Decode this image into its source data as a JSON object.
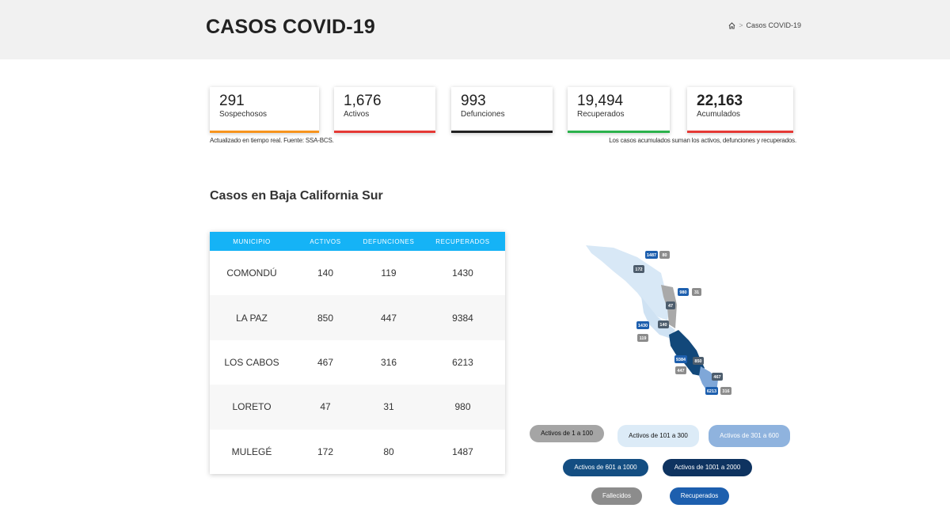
{
  "header": {
    "title": "CASOS COVID-19",
    "breadcrumb": {
      "home_icon": "home-icon",
      "separator": ">",
      "current": "Casos COVID-19"
    }
  },
  "stats": [
    {
      "value": "291",
      "label": "Sospechosos",
      "color": "#f7941d"
    },
    {
      "value": "1,676",
      "label": "Activos",
      "color": "#e53935"
    },
    {
      "value": "993",
      "label": "Defunciones",
      "color": "#222222"
    },
    {
      "value": "19,494",
      "label": "Recuperados",
      "color": "#2bb24c"
    },
    {
      "value": "22,163",
      "label": "Acumulados",
      "color": "#e53935"
    }
  ],
  "notes": {
    "left": "Actualizado en tiempo real. Fuente: SSA-BCS.",
    "right": "Los casos acumulados suman los activos, defunciones y recuperados."
  },
  "section_title": "Casos en Baja California Sur",
  "table": {
    "headers": [
      "MUNICIPIO",
      "ACTIVOS",
      "DEFUNCIONES",
      "RECUPERADOS"
    ],
    "rows": [
      [
        "COMONDÚ",
        "140",
        "119",
        "1430"
      ],
      [
        "LA PAZ",
        "850",
        "447",
        "9384"
      ],
      [
        "LOS CABOS",
        "467",
        "316",
        "6213"
      ],
      [
        "LORETO",
        "47",
        "31",
        "980"
      ],
      [
        "MULEGÉ",
        "172",
        "80",
        "1487"
      ]
    ]
  },
  "map": {
    "labels": [
      "1487",
      "80",
      "172",
      "980",
      "31",
      "47",
      "1430",
      "140",
      "119",
      "9384",
      "850",
      "447",
      "467",
      "6213",
      "316"
    ]
  },
  "legend": [
    {
      "label": "Activos de 1 a 100",
      "bg": "#a5a5a5",
      "fg": "#111111"
    },
    {
      "label": "Activos de 101 a 300",
      "bg": "#dcebf7",
      "fg": "#111111"
    },
    {
      "label": "Activos de 301 a 600",
      "bg": "#8fb3de",
      "fg": "#ffffff"
    },
    {
      "label": "Activos de 601 a 1000",
      "bg": "#144e82",
      "fg": "#ffffff"
    },
    {
      "label": "Activos de 1001 a 2000",
      "bg": "#0e3360",
      "fg": "#ffffff"
    },
    {
      "label": "Fallecidos",
      "bg": "#8c8c8c",
      "fg": "#ffffff"
    },
    {
      "label": "Recuperados",
      "bg": "#1d5fae",
      "fg": "#ffffff"
    }
  ]
}
